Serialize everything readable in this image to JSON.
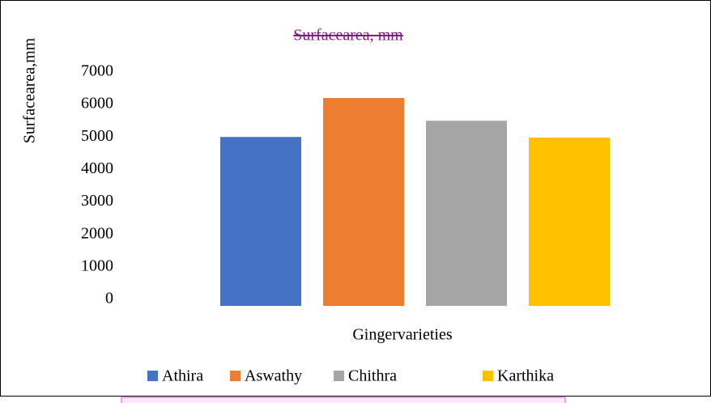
{
  "chart_data": {
    "type": "bar",
    "title": "Surfacearea, mm",
    "y_label": "Surfacearea,mm",
    "x_label": "Gingervarieties",
    "series": [
      {
        "name": "Athira",
        "color": "#4472c4",
        "values": [
          5200
        ]
      },
      {
        "name": "Aswathy",
        "color": "#ed7d31",
        "values": [
          6400
        ]
      },
      {
        "name": "Chithra",
        "color": "#a5a5a5",
        "values": [
          5700
        ]
      },
      {
        "name": "Karthika",
        "color": "#ffc000",
        "values": [
          5180
        ]
      }
    ],
    "ylim": [
      0,
      7000
    ],
    "yticks": [
      0,
      1000,
      2000,
      3000,
      4000,
      5000,
      6000,
      7000
    ],
    "grid": false,
    "legend": "bottom"
  }
}
